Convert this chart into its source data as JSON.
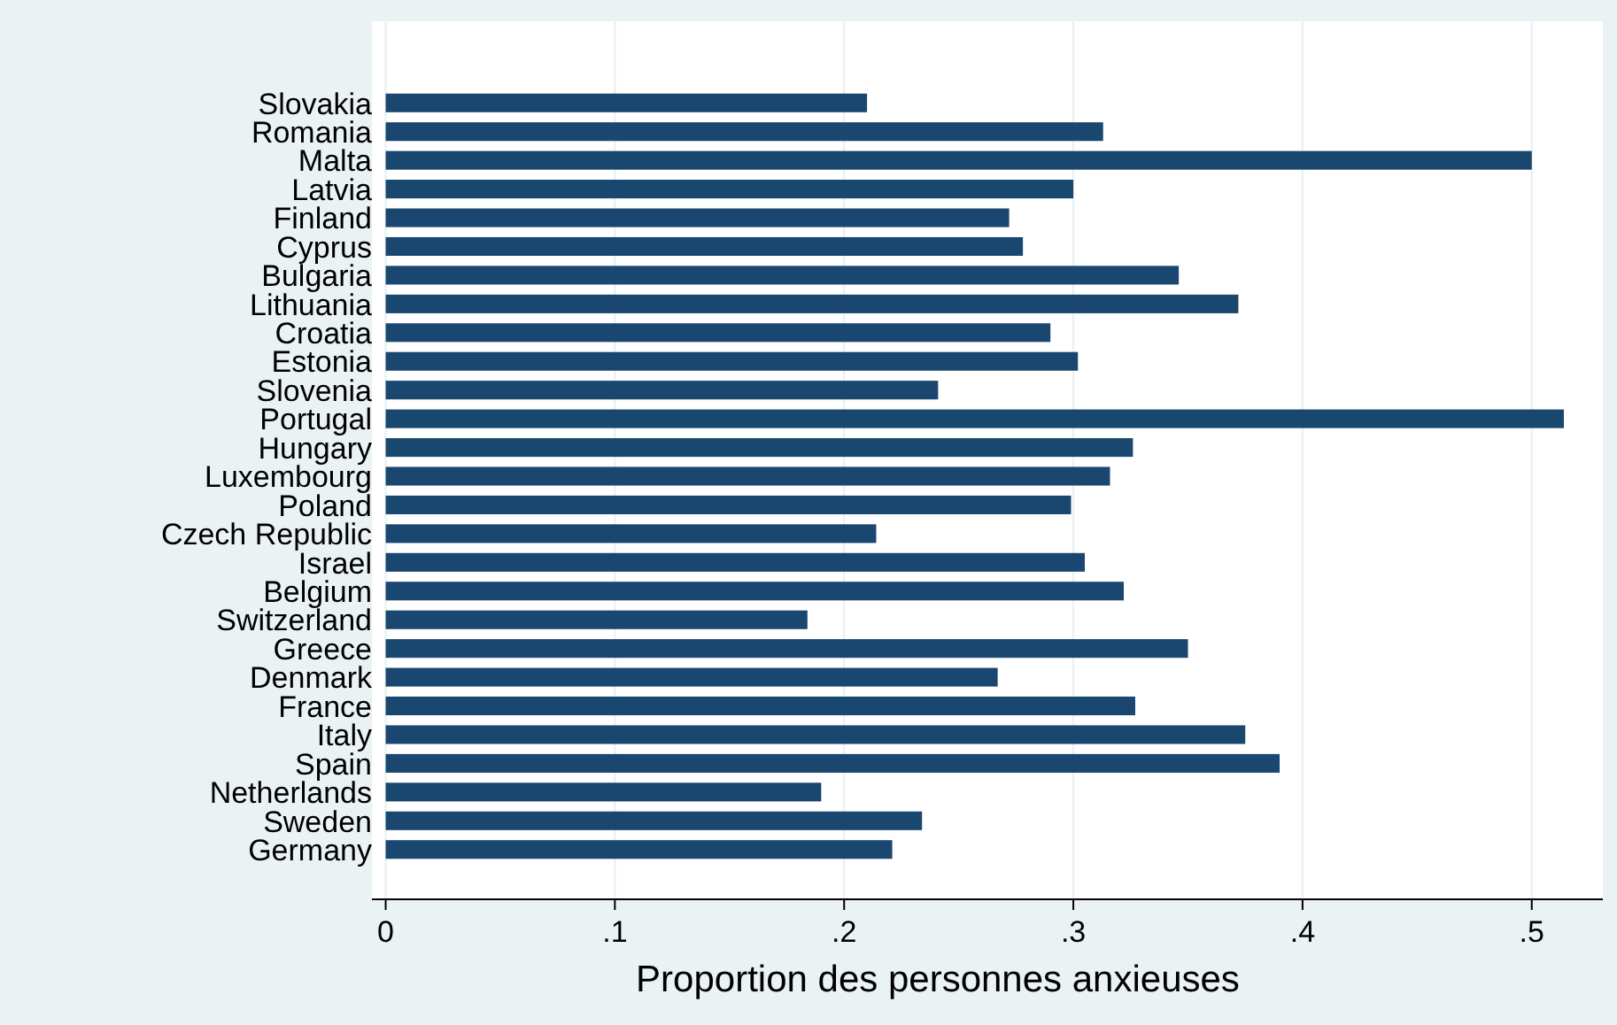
{
  "chart_data": {
    "type": "bar",
    "orientation": "horizontal",
    "xlabel": "Proportion des personnes anxieuses",
    "categories": [
      "Slovakia",
      "Romania",
      "Malta",
      "Latvia",
      "Finland",
      "Cyprus",
      "Bulgaria",
      "Lithuania",
      "Croatia",
      "Estonia",
      "Slovenia",
      "Portugal",
      "Hungary",
      "Luxembourg",
      "Poland",
      "Czech Republic",
      "Israel",
      "Belgium",
      "Switzerland",
      "Greece",
      "Denmark",
      "France",
      "Italy",
      "Spain",
      "Netherlands",
      "Sweden",
      "Germany"
    ],
    "values": [
      0.21,
      0.313,
      0.5,
      0.3,
      0.272,
      0.278,
      0.346,
      0.372,
      0.29,
      0.302,
      0.241,
      0.514,
      0.326,
      0.316,
      0.299,
      0.214,
      0.305,
      0.322,
      0.184,
      0.35,
      0.267,
      0.327,
      0.375,
      0.39,
      0.19,
      0.234,
      0.221
    ],
    "color": "#1a476f",
    "xlim": [
      -0.006,
      0.531
    ],
    "xticks": [
      {
        "value": 0,
        "label": "0"
      },
      {
        "value": 0.1,
        "label": ".1"
      },
      {
        "value": 0.2,
        "label": ".2"
      },
      {
        "value": 0.3,
        "label": ".3"
      },
      {
        "value": 0.4,
        "label": ".4"
      },
      {
        "value": 0.5,
        "label": ".5"
      }
    ],
    "grid": "x"
  }
}
